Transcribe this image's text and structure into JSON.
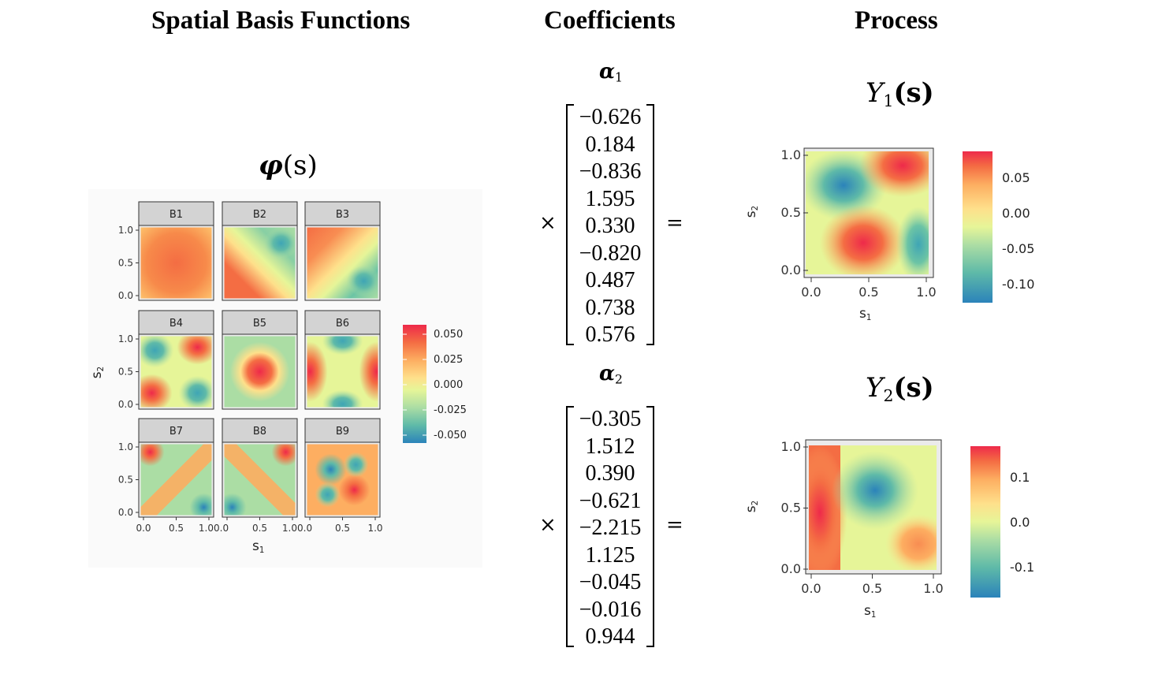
{
  "headers": {
    "basis": "Spatial Basis Functions",
    "coefficients": "Coefficients",
    "process": "Process"
  },
  "basis_panel": {
    "phi_symbol": "φ",
    "phi_arg": "(s)",
    "panels": [
      "B1",
      "B2",
      "B3",
      "B4",
      "B5",
      "B6",
      "B7",
      "B8",
      "B9"
    ],
    "y_ticks": [
      "0.0",
      "0.5",
      "1.0"
    ],
    "x_ticks_col1": [
      "0.0",
      "0.5",
      "1.00.0"
    ],
    "x_ticks_col2": [
      "0.5",
      "1.00.0"
    ],
    "x_ticks_col3": [
      "0.5",
      "1.0"
    ],
    "xlabel_main": "s",
    "xlabel_sub": "1",
    "ylabel_main": "s",
    "ylabel_sub": "2",
    "legend_labels": [
      "0.050",
      "0.025",
      "0.000",
      "-0.025",
      "-0.050"
    ]
  },
  "coefficients": {
    "alpha1_symbol": "α",
    "alpha1_sub": "1",
    "alpha2_symbol": "α",
    "alpha2_sub": "2",
    "alpha1": [
      "−0.626",
      "0.184",
      "−0.836",
      "1.595",
      "0.330",
      "−0.820",
      "0.487",
      "0.738",
      "0.576"
    ],
    "alpha2": [
      "−0.305",
      "1.512",
      "0.390",
      "−0.621",
      "−2.215",
      "1.125",
      "−0.045",
      "−0.016",
      "0.944"
    ],
    "times": "×",
    "equals": "="
  },
  "process": {
    "y1_main": "Y",
    "y1_sub": "1",
    "y1_arg": "(s)",
    "y2_main": "Y",
    "y2_sub": "2",
    "y2_arg": "(s)",
    "ticks": [
      "0.0",
      "0.5",
      "1.0"
    ],
    "xlabel_main": "s",
    "xlabel_sub": "1",
    "ylabel_main": "s",
    "ylabel_sub": "2",
    "y1_legend": [
      "0.05",
      "0.00",
      "-0.05",
      "-0.10"
    ],
    "y2_legend": [
      "0.1",
      "0.0",
      "-0.1"
    ]
  },
  "colors": {
    "strip": "#d3d3d3",
    "panel_bg": "#ebebeb",
    "spectral": [
      "#2b83ba",
      "#5fbaa8",
      "#abdda4",
      "#e6f598",
      "#fee08b",
      "#fdae61",
      "#f46d43",
      "#ee2a4a"
    ]
  }
}
